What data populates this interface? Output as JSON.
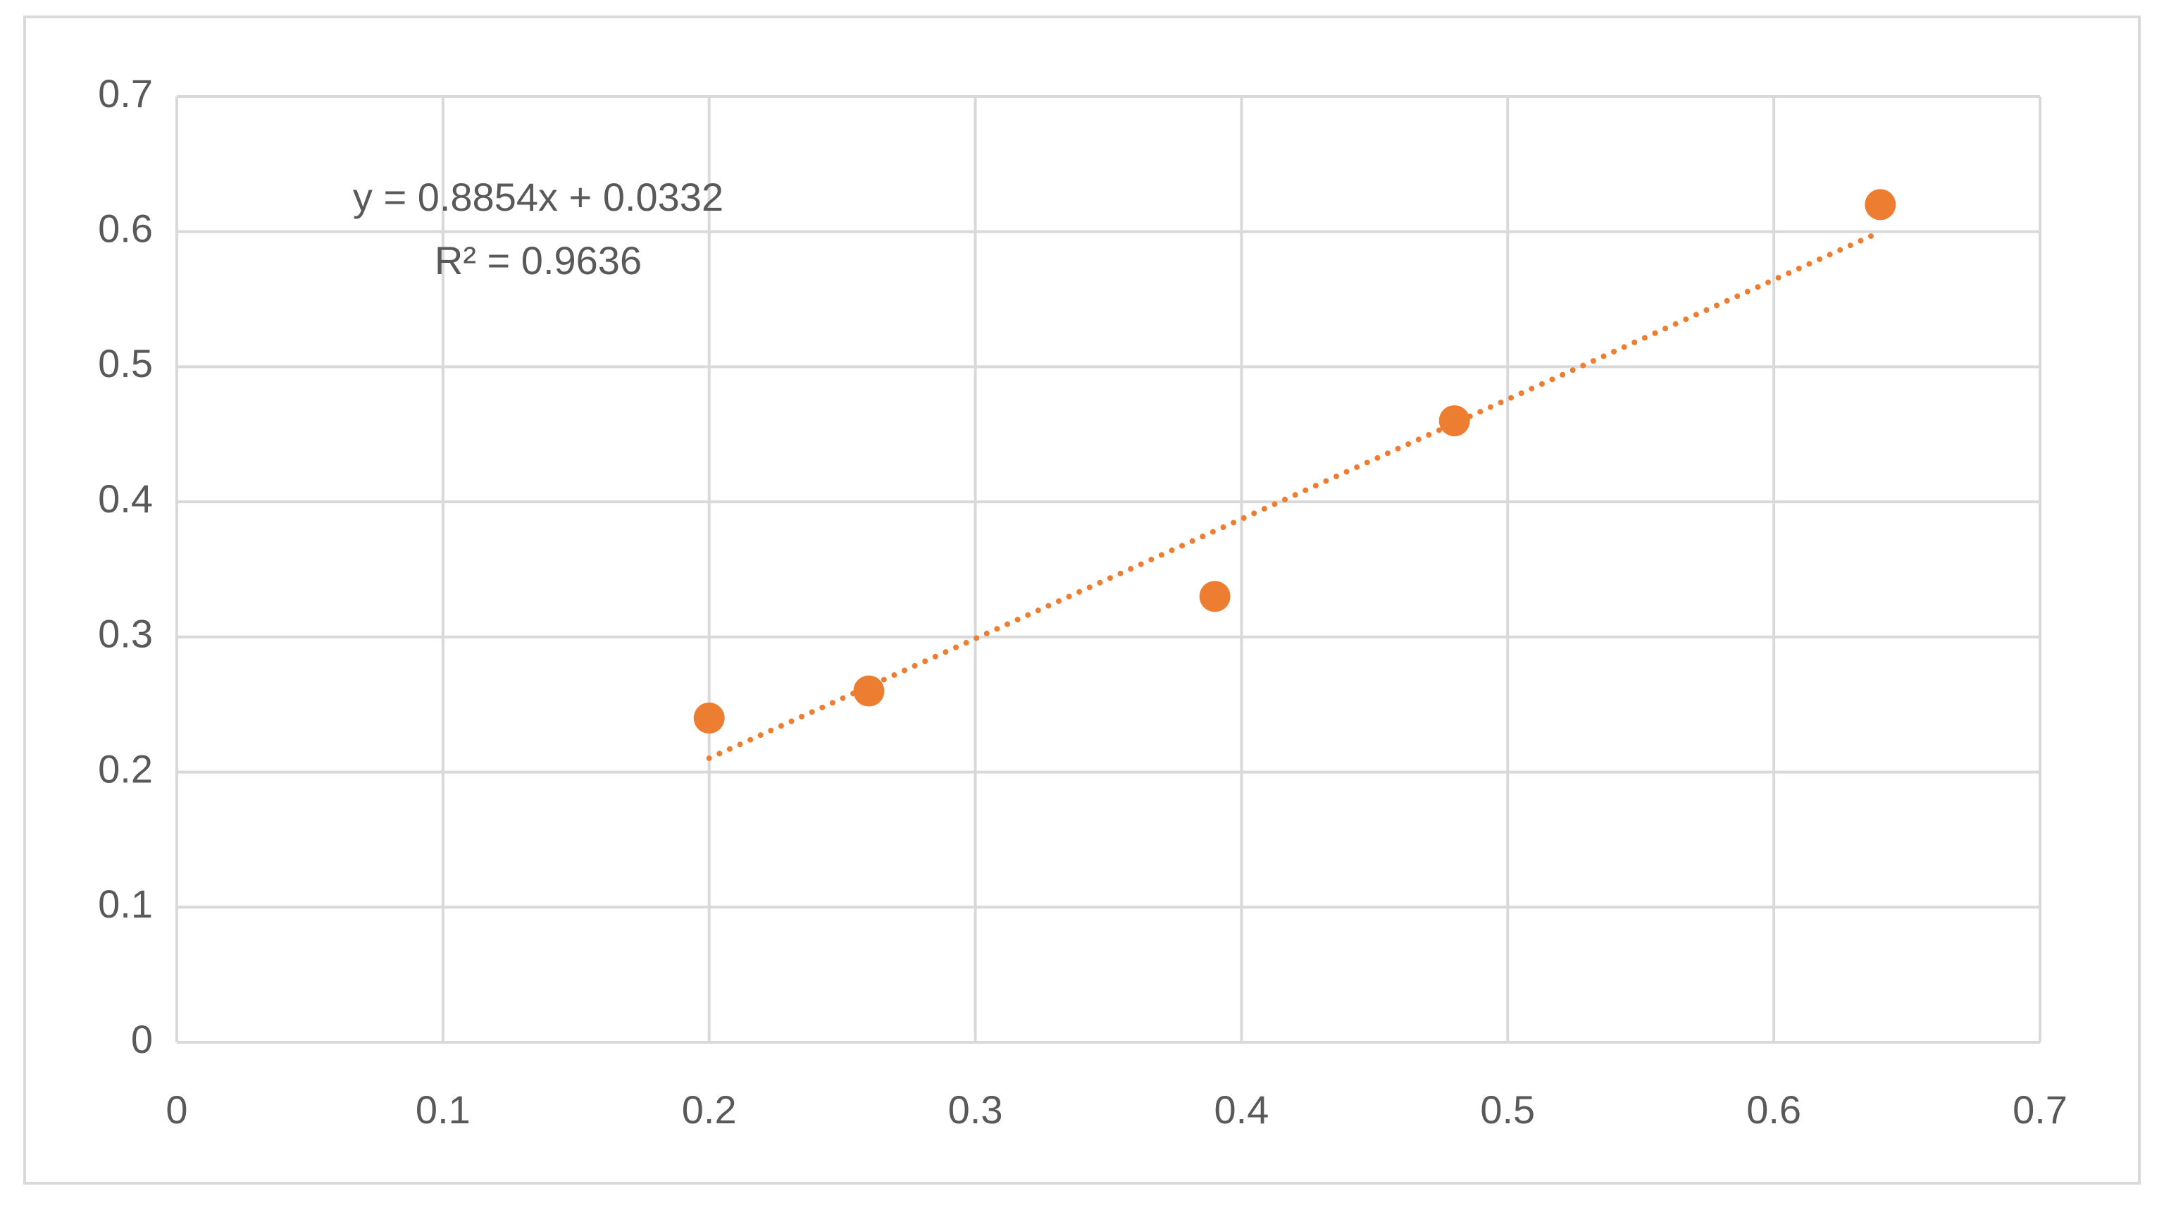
{
  "chart_data": {
    "type": "scatter",
    "series": [
      {
        "color": "#ED7D31",
        "x": [
          0.2,
          0.26,
          0.39,
          0.48,
          0.64
        ],
        "values": [
          0.24,
          0.26,
          0.33,
          0.46,
          0.62
        ]
      }
    ],
    "trendline": {
      "type": "linear",
      "style": "dotted",
      "equation": "y = 0.8854x + 0.0332",
      "r_squared": "R² = 0.9636"
    },
    "xlim": [
      0,
      0.7
    ],
    "xticks": [
      0,
      0.1,
      0.2,
      0.3,
      0.4,
      0.5,
      0.6,
      0.7
    ],
    "ylim": [
      0,
      0.7
    ],
    "yticks": [
      0,
      0.1,
      0.2,
      0.3,
      0.4,
      0.5,
      0.6,
      0.7
    ],
    "grid": true
  }
}
